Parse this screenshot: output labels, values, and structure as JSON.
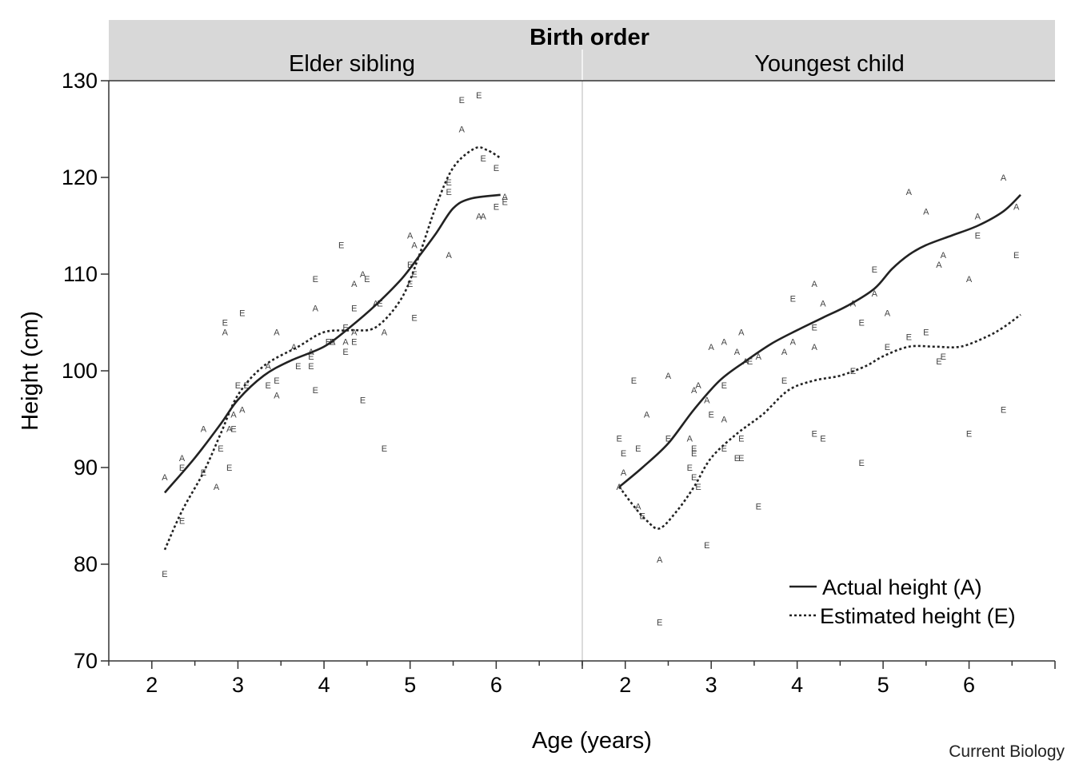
{
  "chart_data": {
    "type": "scatter",
    "facet_title": "Birth order",
    "xlabel": "Age (years)",
    "ylabel": "Height (cm)",
    "ylim": [
      70,
      130
    ],
    "yticks": [
      70,
      80,
      90,
      100,
      110,
      120,
      130
    ],
    "xticks": [
      2,
      3,
      4,
      5,
      6
    ],
    "legend_position": "bottom-right",
    "legend": [
      {
        "key": "A",
        "label": "Actual height (A)",
        "style": "solid"
      },
      {
        "key": "E",
        "label": "Estimated height (E)",
        "style": "dotted"
      }
    ],
    "panels": [
      {
        "title": "Elder sibling",
        "xlim": [
          1.5,
          7.0
        ],
        "smooth": {
          "A": [
            [
              2.15,
              87.4
            ],
            [
              2.5,
              91.0
            ],
            [
              2.8,
              94.5
            ],
            [
              3.0,
              97.0
            ],
            [
              3.3,
              99.5
            ],
            [
              3.6,
              101.0
            ],
            [
              4.0,
              102.5
            ],
            [
              4.3,
              104.5
            ],
            [
              4.6,
              106.8
            ],
            [
              4.9,
              109.5
            ],
            [
              5.1,
              111.8
            ],
            [
              5.3,
              114.2
            ],
            [
              5.5,
              116.8
            ],
            [
              5.7,
              117.8
            ],
            [
              6.05,
              118.2
            ]
          ],
          "E": [
            [
              2.15,
              81.5
            ],
            [
              2.35,
              85.5
            ],
            [
              2.6,
              89.5
            ],
            [
              2.8,
              93.5
            ],
            [
              3.0,
              97.5
            ],
            [
              3.3,
              100.5
            ],
            [
              3.7,
              102.5
            ],
            [
              4.0,
              104.0
            ],
            [
              4.3,
              104.2
            ],
            [
              4.6,
              104.5
            ],
            [
              4.9,
              107.5
            ],
            [
              5.1,
              111.8
            ],
            [
              5.3,
              117.0
            ],
            [
              5.5,
              121.0
            ],
            [
              5.75,
              123.0
            ],
            [
              5.9,
              122.8
            ],
            [
              6.05,
              122.0
            ]
          ]
        },
        "points": {
          "A": [
            [
              2.15,
              89
            ],
            [
              2.35,
              91
            ],
            [
              2.6,
              94
            ],
            [
              2.75,
              88
            ],
            [
              2.85,
              104
            ],
            [
              2.9,
              94
            ],
            [
              2.95,
              95.5
            ],
            [
              3.05,
              96
            ],
            [
              3.35,
              100.5
            ],
            [
              3.45,
              104
            ],
            [
              3.45,
              97.5
            ],
            [
              3.65,
              102.5
            ],
            [
              3.85,
              102
            ],
            [
              3.9,
              106.5
            ],
            [
              4.1,
              103
            ],
            [
              4.25,
              103
            ],
            [
              4.35,
              104
            ],
            [
              4.35,
              109
            ],
            [
              4.45,
              110
            ],
            [
              4.6,
              107
            ],
            [
              4.7,
              104
            ],
            [
              5.0,
              114
            ],
            [
              5.05,
              113
            ],
            [
              5.45,
              112
            ],
            [
              5.6,
              125
            ],
            [
              5.8,
              116
            ],
            [
              5.85,
              116
            ],
            [
              6.1,
              118
            ]
          ],
          "E": [
            [
              2.15,
              79
            ],
            [
              2.35,
              90
            ],
            [
              2.35,
              84.5
            ],
            [
              2.6,
              89.5
            ],
            [
              2.8,
              92
            ],
            [
              2.85,
              105
            ],
            [
              2.9,
              90
            ],
            [
              2.95,
              94
            ],
            [
              3.0,
              98.5
            ],
            [
              3.05,
              106
            ],
            [
              3.1,
              98.5
            ],
            [
              3.35,
              98.5
            ],
            [
              3.45,
              99
            ],
            [
              3.7,
              100.5
            ],
            [
              3.85,
              100.5
            ],
            [
              3.85,
              101.5
            ],
            [
              3.9,
              109.5
            ],
            [
              3.9,
              98
            ],
            [
              4.05,
              103
            ],
            [
              4.1,
              103
            ],
            [
              4.2,
              113
            ],
            [
              4.25,
              104.5
            ],
            [
              4.25,
              102
            ],
            [
              4.35,
              106.5
            ],
            [
              4.35,
              103
            ],
            [
              4.45,
              97
            ],
            [
              4.5,
              109.5
            ],
            [
              4.65,
              107
            ],
            [
              4.7,
              92
            ],
            [
              5.0,
              111
            ],
            [
              5.0,
              109
            ],
            [
              5.05,
              105.5
            ],
            [
              5.05,
              110
            ],
            [
              5.45,
              118.5
            ],
            [
              5.45,
              119.5
            ],
            [
              5.6,
              128
            ],
            [
              5.8,
              128.5
            ],
            [
              5.85,
              122
            ],
            [
              6.0,
              121
            ],
            [
              6.0,
              117
            ],
            [
              6.1,
              117.5
            ]
          ]
        }
      },
      {
        "title": "Youngest child",
        "xlim": [
          1.5,
          7.0
        ],
        "smooth": {
          "A": [
            [
              1.93,
              88.0
            ],
            [
              2.2,
              90.0
            ],
            [
              2.5,
              92.5
            ],
            [
              2.8,
              96.0
            ],
            [
              3.1,
              99.0
            ],
            [
              3.4,
              101.0
            ],
            [
              3.7,
              102.8
            ],
            [
              4.0,
              104.2
            ],
            [
              4.3,
              105.5
            ],
            [
              4.6,
              106.8
            ],
            [
              4.9,
              108.5
            ],
            [
              5.1,
              110.5
            ],
            [
              5.3,
              112.0
            ],
            [
              5.5,
              113.0
            ],
            [
              5.8,
              114.0
            ],
            [
              6.1,
              115.0
            ],
            [
              6.4,
              116.5
            ],
            [
              6.6,
              118.2
            ]
          ],
          "E": [
            [
              1.93,
              88.0
            ],
            [
              2.1,
              86.0
            ],
            [
              2.25,
              84.5
            ],
            [
              2.4,
              83.7
            ],
            [
              2.6,
              85.5
            ],
            [
              2.8,
              88.0
            ],
            [
              3.0,
              91.0
            ],
            [
              3.3,
              93.5
            ],
            [
              3.6,
              95.5
            ],
            [
              3.9,
              98.0
            ],
            [
              4.2,
              99.0
            ],
            [
              4.5,
              99.5
            ],
            [
              4.8,
              100.5
            ],
            [
              5.0,
              101.5
            ],
            [
              5.3,
              102.5
            ],
            [
              5.6,
              102.5
            ],
            [
              5.9,
              102.5
            ],
            [
              6.2,
              103.5
            ],
            [
              6.4,
              104.5
            ],
            [
              6.6,
              105.8
            ]
          ]
        },
        "points": {
          "A": [
            [
              1.93,
              88
            ],
            [
              1.98,
              89.5
            ],
            [
              2.15,
              86
            ],
            [
              2.25,
              95.5
            ],
            [
              2.4,
              80.5
            ],
            [
              2.5,
              99.5
            ],
            [
              2.75,
              93
            ],
            [
              2.8,
              98
            ],
            [
              2.85,
              98.5
            ],
            [
              2.95,
              97
            ],
            [
              3.0,
              102.5
            ],
            [
              3.15,
              103
            ],
            [
              3.15,
              95
            ],
            [
              3.3,
              102
            ],
            [
              3.35,
              104
            ],
            [
              3.4,
              101
            ],
            [
              3.55,
              101.5
            ],
            [
              3.85,
              102
            ],
            [
              3.95,
              103
            ],
            [
              4.2,
              109
            ],
            [
              4.2,
              102.5
            ],
            [
              4.3,
              107
            ],
            [
              4.65,
              107
            ],
            [
              4.9,
              108
            ],
            [
              5.05,
              106
            ],
            [
              5.3,
              118.5
            ],
            [
              5.5,
              116.5
            ],
            [
              5.65,
              111
            ],
            [
              5.7,
              112
            ],
            [
              6.0,
              109.5
            ],
            [
              6.1,
              116
            ],
            [
              6.4,
              120
            ],
            [
              6.55,
              117
            ]
          ],
          "E": [
            [
              1.93,
              93
            ],
            [
              1.98,
              91.5
            ],
            [
              2.1,
              99
            ],
            [
              2.15,
              92
            ],
            [
              2.2,
              85
            ],
            [
              2.4,
              74
            ],
            [
              2.5,
              93
            ],
            [
              2.75,
              90
            ],
            [
              2.8,
              91.5
            ],
            [
              2.8,
              92
            ],
            [
              2.8,
              89
            ],
            [
              2.85,
              88
            ],
            [
              2.95,
              82
            ],
            [
              3.0,
              95.5
            ],
            [
              3.15,
              98.5
            ],
            [
              3.15,
              92
            ],
            [
              3.3,
              91
            ],
            [
              3.35,
              93
            ],
            [
              3.35,
              91
            ],
            [
              3.45,
              101
            ],
            [
              3.55,
              86
            ],
            [
              3.85,
              99
            ],
            [
              3.95,
              107.5
            ],
            [
              4.2,
              104.5
            ],
            [
              4.2,
              93.5
            ],
            [
              4.3,
              93
            ],
            [
              4.65,
              100
            ],
            [
              4.75,
              105
            ],
            [
              4.75,
              90.5
            ],
            [
              4.9,
              110.5
            ],
            [
              5.05,
              102.5
            ],
            [
              5.3,
              103.5
            ],
            [
              5.5,
              104
            ],
            [
              5.65,
              101
            ],
            [
              5.7,
              101.5
            ],
            [
              6.0,
              93.5
            ],
            [
              6.1,
              114
            ],
            [
              6.4,
              96
            ],
            [
              6.55,
              112
            ]
          ]
        }
      }
    ]
  },
  "credit": "Current Biology"
}
